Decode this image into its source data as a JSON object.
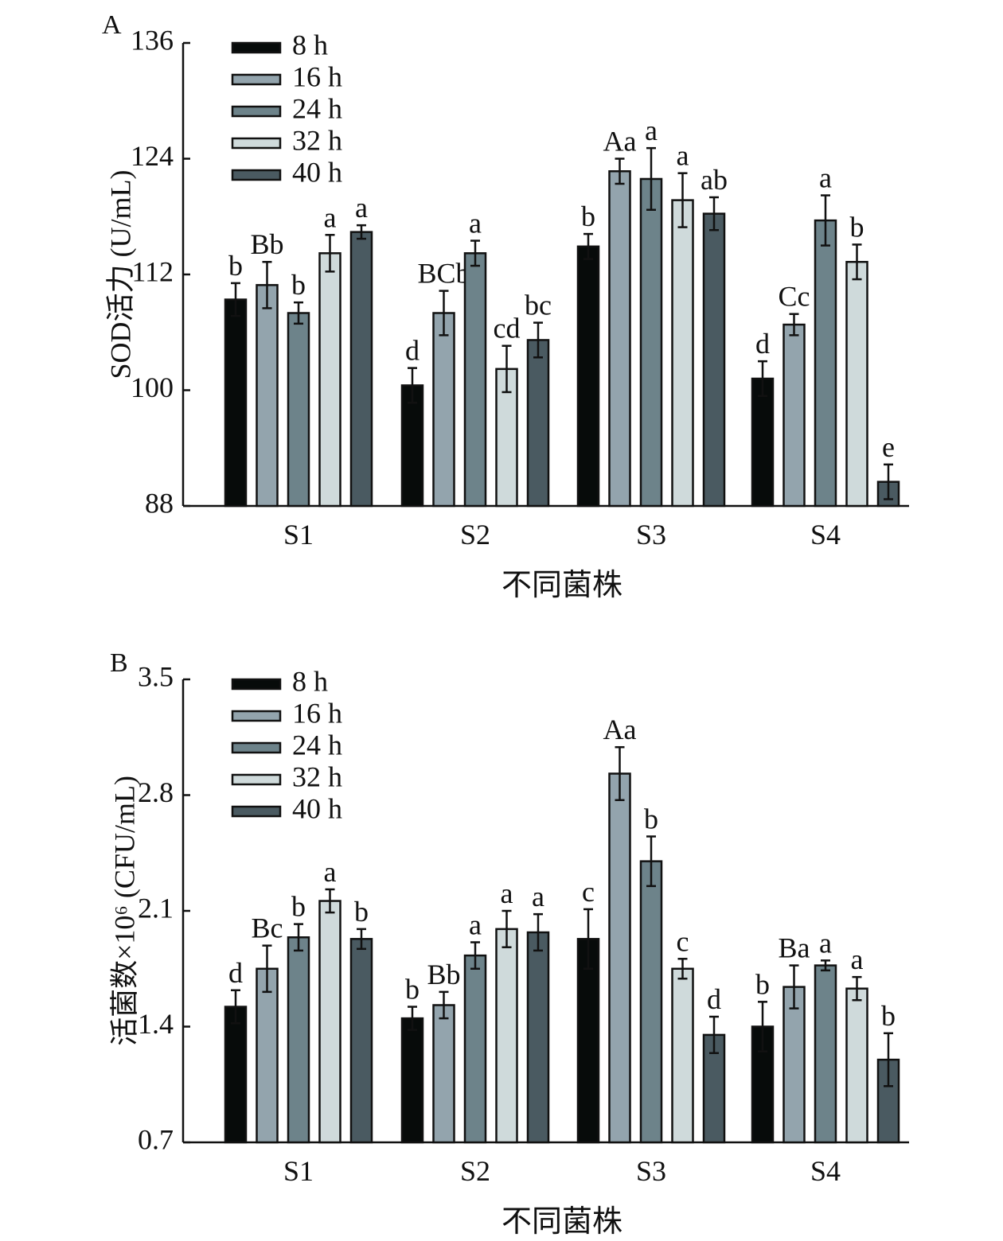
{
  "chart_data": [
    {
      "type": "bar",
      "panel_label": "A",
      "title": "",
      "xlabel": "不同菌株",
      "ylabel": "SOD活力 (U/mL)",
      "ylim": [
        88,
        136
      ],
      "yticks": [
        "88",
        "100",
        "112",
        "124",
        "136"
      ],
      "ytick_values": [
        88,
        100,
        112,
        124,
        136
      ],
      "categories": [
        "S1",
        "S2",
        "S3",
        "S4"
      ],
      "legend_position": "top-left",
      "grid": false,
      "series": [
        {
          "name": "8 h",
          "color": "#070b0a",
          "values": [
            109.4,
            100.5,
            114.9,
            101.2
          ],
          "errors": [
            1.7,
            1.8,
            1.3,
            1.8
          ],
          "labels": [
            "b",
            "d",
            "b",
            "d"
          ]
        },
        {
          "name": "16 h",
          "color": "#93a4ad",
          "values": [
            110.9,
            108.0,
            122.7,
            106.8
          ],
          "errors": [
            2.4,
            2.3,
            1.3,
            1.1
          ],
          "labels": [
            "Bb",
            "BCb",
            "Aa",
            "Cc"
          ]
        },
        {
          "name": "24 h",
          "color": "#6d838a",
          "values": [
            108.0,
            114.2,
            121.9,
            117.6
          ],
          "errors": [
            1.1,
            1.3,
            3.2,
            2.6
          ],
          "labels": [
            "b",
            "a",
            "a",
            "a"
          ]
        },
        {
          "name": "32 h",
          "color": "#cfdadb",
          "values": [
            114.2,
            102.2,
            119.7,
            113.3
          ],
          "errors": [
            1.9,
            2.4,
            2.8,
            1.8
          ],
          "labels": [
            "a",
            "cd",
            "a",
            "b"
          ]
        },
        {
          "name": "40 h",
          "color": "#4a5a61",
          "values": [
            116.4,
            105.2,
            118.3,
            90.5
          ],
          "errors": [
            0.7,
            1.8,
            1.7,
            1.8
          ],
          "labels": [
            "a",
            "bc",
            "ab",
            "e"
          ]
        }
      ]
    },
    {
      "type": "bar",
      "panel_label": "B",
      "title": "",
      "xlabel": "不同菌株",
      "ylabel": "活菌数×10⁶ (CFU/mL)",
      "ylim": [
        0.7,
        3.5
      ],
      "yticks": [
        "0.7",
        "1.4",
        "2.1",
        "2.8",
        "3.5"
      ],
      "ytick_values": [
        0.7,
        1.4,
        2.1,
        2.8,
        3.5
      ],
      "categories": [
        "S1",
        "S2",
        "S3",
        "S4"
      ],
      "legend_position": "top-left",
      "grid": false,
      "series": [
        {
          "name": "8 h",
          "color": "#070b0a",
          "values": [
            1.52,
            1.45,
            1.93,
            1.4
          ],
          "errors": [
            0.1,
            0.07,
            0.18,
            0.15
          ],
          "labels": [
            "d",
            "b",
            "c",
            "b"
          ]
        },
        {
          "name": "16 h",
          "color": "#93a4ad",
          "values": [
            1.75,
            1.53,
            2.93,
            1.64
          ],
          "errors": [
            0.14,
            0.08,
            0.16,
            0.13
          ],
          "labels": [
            "Bc",
            "Bb",
            "Aa",
            "Ba"
          ]
        },
        {
          "name": "24 h",
          "color": "#6d838a",
          "values": [
            1.94,
            1.83,
            2.4,
            1.77
          ],
          "errors": [
            0.08,
            0.08,
            0.15,
            0.03
          ],
          "labels": [
            "b",
            "a",
            "b",
            "a"
          ]
        },
        {
          "name": "32 h",
          "color": "#cfdadb",
          "values": [
            2.16,
            1.99,
            1.75,
            1.63
          ],
          "errors": [
            0.07,
            0.11,
            0.06,
            0.07
          ],
          "labels": [
            "a",
            "a",
            "c",
            "a"
          ]
        },
        {
          "name": "40 h",
          "color": "#4a5a61",
          "values": [
            1.93,
            1.97,
            1.35,
            1.2
          ],
          "errors": [
            0.06,
            0.11,
            0.11,
            0.16
          ],
          "labels": [
            "b",
            "a",
            "d",
            "b"
          ]
        }
      ]
    }
  ]
}
